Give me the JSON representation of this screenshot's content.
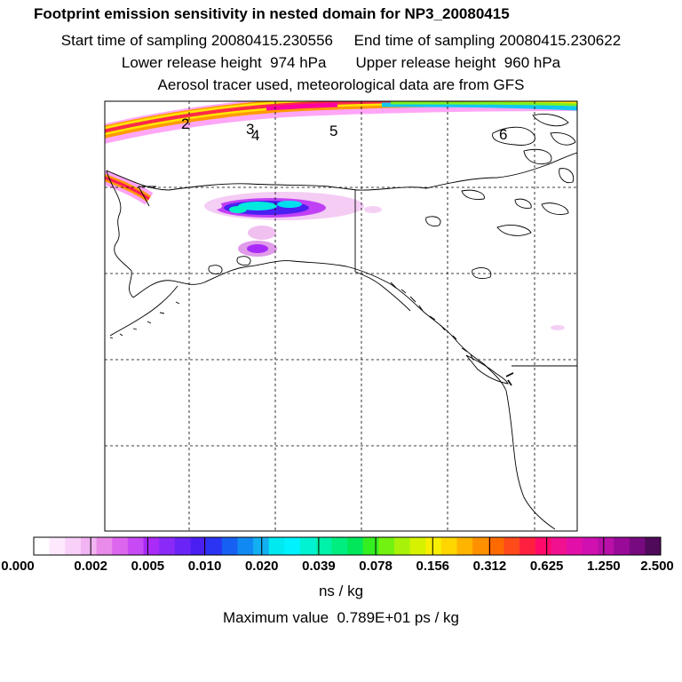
{
  "header": {
    "title": "Footprint emission sensitivity in nested domain for NP3_20080415",
    "sampling": "Start time of sampling 20080415.230556     End time of sampling 20080415.230622",
    "release": "Lower release height  974 hPa       Upper release height  960 hPa",
    "tracer": "Aerosol tracer used, meteorological data are from GFS"
  },
  "map": {
    "labels": [
      "2",
      "3",
      "4",
      "5",
      "6"
    ],
    "colors": {
      "coast": "#000000",
      "grid": "#000000"
    }
  },
  "colorbar": {
    "colors": [
      "#ffffff",
      "#fde8fd",
      "#f8d0f8",
      "#f2b4f2",
      "#e98be9",
      "#dd66ee",
      "#c84af5",
      "#aa2af8",
      "#8a2af8",
      "#6a24f6",
      "#4a20f2",
      "#2a34f2",
      "#1660f2",
      "#108af2",
      "#12b0f2",
      "#00e8f0",
      "#00f2ff",
      "#00f2d2",
      "#00f2a8",
      "#00ee80",
      "#00e85a",
      "#34ee20",
      "#72f210",
      "#a8f20a",
      "#d6f200",
      "#f8ee00",
      "#ffd600",
      "#ffb400",
      "#ff9000",
      "#ff6a00",
      "#ff4a1a",
      "#ff2040",
      "#ff0a6a",
      "#f01090",
      "#e210a8",
      "#d010b0",
      "#b810a8",
      "#9a0a98",
      "#780a80",
      "#500a5a"
    ],
    "labels": [
      "0.000",
      "0.002",
      "0.005",
      "0.010",
      "0.020",
      "0.039",
      "0.078",
      "0.156",
      "0.312",
      "0.625",
      "1.250",
      "2.500"
    ],
    "units": "ns / kg"
  },
  "maximum": "Maximum value  0.789E+01 ps / kg"
}
